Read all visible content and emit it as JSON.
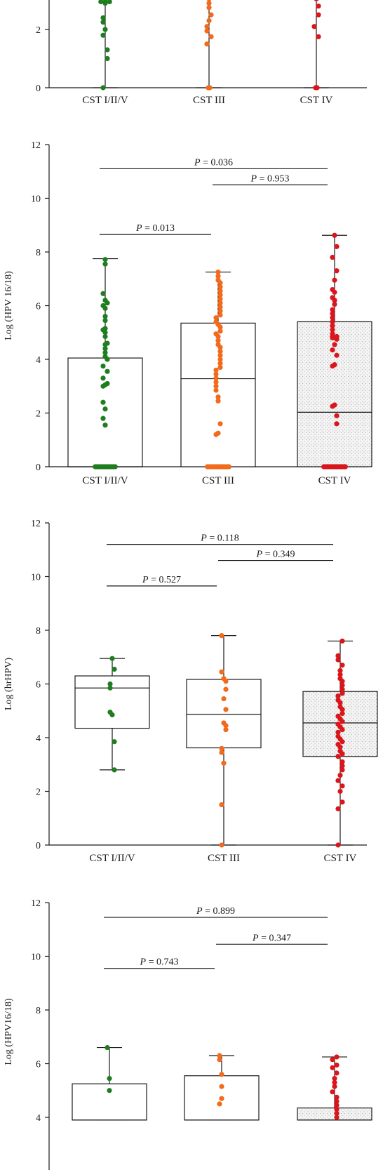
{
  "colors": {
    "group1": "#1e7d1e",
    "group2": "#f26a1b",
    "group3": "#d9161c",
    "axis": "#1a1a1a",
    "box_fill_hatched": "#e6e6e6"
  },
  "chart_data": [
    {
      "type": "box-scatter",
      "panel": "A (partial)",
      "categories": [
        "CST I/II/V",
        "CST III",
        "CST IV"
      ],
      "ylabel": "",
      "yticks": [
        0,
        2
      ],
      "ylim": [
        0,
        3.1
      ],
      "boxes": [
        {
          "category": "CST I/II/V",
          "q1": 0,
          "median": 0,
          "q3": 0,
          "whisker_low": 0,
          "whisker_high": 3.1,
          "fill": "white"
        },
        {
          "category": "CST III",
          "q1": 0,
          "median": 0,
          "q3": 0,
          "whisker_low": 0,
          "whisker_high": 3.1,
          "fill": "white"
        },
        {
          "category": "CST IV",
          "q1": 0,
          "median": 0,
          "q3": 0,
          "whisker_low": 0,
          "whisker_high": 3.1,
          "fill": "hatched"
        }
      ],
      "points": [
        {
          "category": "CST I/II/V",
          "values": [
            2.95,
            2.95,
            2.95,
            2.9,
            2.4,
            2.25,
            2.0,
            1.8,
            1.3,
            1.0,
            0
          ]
        },
        {
          "category": "CST III",
          "values": [
            3.05,
            2.9,
            2.75,
            2.5,
            2.3,
            2.1,
            1.95,
            1.75,
            1.5,
            0,
            0
          ]
        },
        {
          "category": "CST IV",
          "values": [
            3.05,
            2.8,
            2.5,
            2.1,
            1.75,
            0,
            0
          ]
        }
      ],
      "comparisons": []
    },
    {
      "type": "box-scatter",
      "panel": "B",
      "categories": [
        "CST I/II/V",
        "CST III",
        "CST IV"
      ],
      "ylabel": "Log (HPV 16/18)",
      "yticks": [
        0,
        2,
        4,
        6,
        8,
        10,
        12
      ],
      "ylim": [
        0,
        12
      ],
      "boxes": [
        {
          "category": "CST I/II/V",
          "q1": 0,
          "median": 0,
          "q3": 4.05,
          "whisker_low": 0,
          "whisker_high": 7.75,
          "fill": "white"
        },
        {
          "category": "CST III",
          "q1": 0,
          "median": 3.28,
          "q3": 5.35,
          "whisker_low": 0,
          "whisker_high": 7.25,
          "fill": "white"
        },
        {
          "category": "CST IV",
          "q1": 0,
          "median": 2.03,
          "q3": 5.4,
          "whisker_low": 0,
          "whisker_high": 8.62,
          "fill": "hatched"
        }
      ],
      "points": [
        {
          "category": "CST I/II/V",
          "values": [
            7.72,
            7.55,
            6.45,
            6.2,
            6.1,
            6.0,
            5.9,
            5.6,
            5.45,
            5.15,
            5.1,
            5.0,
            4.85,
            4.6,
            4.55,
            4.4,
            4.25,
            4.1,
            4.0,
            3.75,
            3.55,
            3.3,
            3.1,
            3.05,
            3.0,
            2.4,
            2.15,
            1.8,
            1.55,
            0,
            0,
            0,
            0,
            0,
            0,
            0,
            0,
            0,
            0,
            0,
            0,
            0,
            0
          ]
        },
        {
          "category": "CST III",
          "values": [
            7.25,
            7.1,
            6.95,
            6.85,
            6.7,
            6.55,
            6.4,
            6.25,
            6.1,
            5.95,
            5.8,
            5.65,
            5.55,
            5.4,
            5.3,
            5.2,
            5.05,
            4.95,
            4.85,
            4.7,
            4.55,
            4.45,
            4.3,
            4.15,
            4.0,
            3.85,
            3.7,
            3.6,
            3.45,
            3.3,
            3.15,
            3.0,
            2.85,
            2.6,
            2.45,
            1.6,
            1.25,
            1.2,
            0,
            0,
            0,
            0,
            0,
            0,
            0,
            0,
            0,
            0,
            0,
            0,
            0,
            0,
            0
          ]
        },
        {
          "category": "CST IV",
          "values": [
            8.62,
            8.2,
            7.8,
            7.3,
            6.95,
            6.6,
            6.5,
            6.3,
            6.2,
            6.05,
            5.85,
            5.7,
            5.55,
            5.4,
            5.25,
            5.1,
            4.95,
            4.85,
            4.85,
            4.8,
            4.75,
            4.55,
            4.35,
            4.15,
            3.8,
            3.75,
            2.3,
            2.25,
            1.9,
            1.6,
            0,
            0,
            0,
            0,
            0,
            0,
            0,
            0,
            0,
            0,
            0,
            0,
            0,
            0,
            0
          ]
        }
      ],
      "comparisons": [
        {
          "from": 0,
          "to": 2,
          "p_label": "P",
          "p_value": "= 0.036",
          "y": 11.1
        },
        {
          "from": 1,
          "to": 2,
          "p_label": "P",
          "p_value": "= 0.953",
          "y": 10.5
        },
        {
          "from": 0,
          "to": 1,
          "p_label": "P",
          "p_value": "= 0.013",
          "y": 8.65
        }
      ]
    },
    {
      "type": "box-scatter",
      "panel": "C",
      "categories": [
        "CST I/II/V",
        "CST III",
        "CST IV"
      ],
      "ylabel": "Log (hrHPV)",
      "yticks": [
        0,
        2,
        4,
        6,
        8,
        10,
        12
      ],
      "ylim": [
        0,
        12
      ],
      "boxes": [
        {
          "category": "CST I/II/V",
          "q1": 4.35,
          "median": 5.85,
          "q3": 6.3,
          "whisker_low": 2.8,
          "whisker_high": 6.95,
          "fill": "white"
        },
        {
          "category": "CST III",
          "q1": 3.62,
          "median": 4.87,
          "q3": 6.17,
          "whisker_low": 0,
          "whisker_high": 7.8,
          "fill": "white"
        },
        {
          "category": "CST IV",
          "q1": 3.3,
          "median": 4.55,
          "q3": 5.72,
          "whisker_low": 0,
          "whisker_high": 7.6,
          "fill": "hatched"
        }
      ],
      "points": [
        {
          "category": "CST I/II/V",
          "values": [
            6.95,
            6.55,
            6.0,
            5.85,
            4.95,
            4.85,
            3.85,
            2.8
          ]
        },
        {
          "category": "CST III",
          "values": [
            7.8,
            6.45,
            6.2,
            6.1,
            5.8,
            5.45,
            5.05,
            4.55,
            4.45,
            4.3,
            3.6,
            3.45,
            3.05,
            1.5,
            0
          ]
        },
        {
          "category": "CST IV",
          "values": [
            7.6,
            7.05,
            6.9,
            6.7,
            6.5,
            6.35,
            6.2,
            6.1,
            5.95,
            5.8,
            5.65,
            5.55,
            5.4,
            5.3,
            5.15,
            5.05,
            4.9,
            4.8,
            4.7,
            4.6,
            4.5,
            4.4,
            4.3,
            4.2,
            4.05,
            3.95,
            3.85,
            3.75,
            3.65,
            3.5,
            3.4,
            3.3,
            3.1,
            2.95,
            2.8,
            2.6,
            2.4,
            2.2,
            2.0,
            1.6,
            1.35,
            0
          ]
        }
      ],
      "comparisons": [
        {
          "from": 0,
          "to": 2,
          "p_label": "P",
          "p_value": "= 0.118",
          "y": 11.2
        },
        {
          "from": 1,
          "to": 2,
          "p_label": "P",
          "p_value": "= 0.349",
          "y": 10.6
        },
        {
          "from": 0,
          "to": 1,
          "p_label": "P",
          "p_value": "= 0.527",
          "y": 9.65
        }
      ]
    },
    {
      "type": "box-scatter",
      "panel": "D (partial)",
      "categories": [
        "CST I/II/V",
        "CST III",
        "CST IV"
      ],
      "ylabel": "Log (HPV16/18)",
      "yticks": [
        4,
        6,
        8,
        10,
        12
      ],
      "ylim": [
        3.9,
        12
      ],
      "boxes": [
        {
          "category": "CST I/II/V",
          "q1": 3.9,
          "median": 3.9,
          "q3": 5.25,
          "whisker_low": 3.9,
          "whisker_high": 6.6,
          "fill": "white"
        },
        {
          "category": "CST III",
          "q1": 3.9,
          "median": 3.9,
          "q3": 5.55,
          "whisker_low": 3.9,
          "whisker_high": 6.3,
          "fill": "white"
        },
        {
          "category": "CST IV",
          "q1": 3.9,
          "median": 3.9,
          "q3": 4.35,
          "whisker_low": 3.9,
          "whisker_high": 6.25,
          "fill": "hatched"
        }
      ],
      "points": [
        {
          "category": "CST I/II/V",
          "values": [
            6.6,
            5.45,
            5.0
          ]
        },
        {
          "category": "CST III",
          "values": [
            6.3,
            6.15,
            5.6,
            5.15,
            4.7,
            4.5
          ]
        },
        {
          "category": "CST IV",
          "values": [
            6.25,
            6.15,
            5.95,
            5.85,
            5.65,
            5.45,
            5.3,
            5.15,
            4.95,
            4.75,
            4.6,
            4.45,
            4.3,
            4.15,
            4.0
          ]
        }
      ],
      "comparisons": [
        {
          "from": 0,
          "to": 2,
          "p_label": "P",
          "p_value": "= 0.899",
          "y": 11.45
        },
        {
          "from": 1,
          "to": 2,
          "p_label": "P",
          "p_value": "= 0.347",
          "y": 10.45
        },
        {
          "from": 0,
          "to": 1,
          "p_label": "P",
          "p_value": "= 0.743",
          "y": 9.55
        }
      ]
    }
  ]
}
